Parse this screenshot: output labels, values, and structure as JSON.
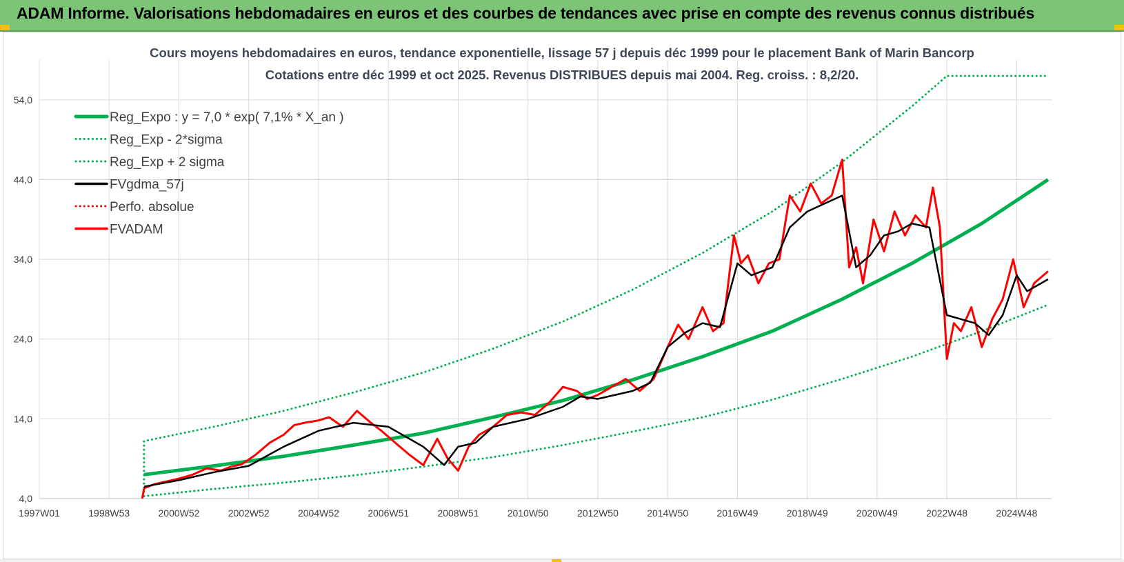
{
  "header": {
    "title": "ADAM Informe. Valorisations hebdomadaires en euros et des courbes de tendances avec prise en compte des revenus connus distribués"
  },
  "colors": {
    "header_bg": "#7cc576",
    "trend": "#00b050",
    "smooth": "#000000",
    "price": "#ff0000",
    "grid": "#d9d9d9"
  },
  "chart_data": {
    "type": "line",
    "title": "Cours moyens hebdomadaires en euros, tendance exponentielle, lissage 57 j depuis déc 1999 pour le placement Bank of Marin Bancorp",
    "subtitle": "Cotations entre déc 1999 et oct 2025.  Revenus DISTRIBUES depuis mai 2004. Reg. croiss. : 8,2/20.",
    "xlabel": "",
    "ylabel": "",
    "xlim": [
      1997.0,
      2026.0
    ],
    "ylim": [
      4.0,
      59.0
    ],
    "y_ticks": [
      4.0,
      14.0,
      24.0,
      34.0,
      44.0,
      54.0
    ],
    "y_tick_labels": [
      "4,0",
      "14,0",
      "24,0",
      "34,0",
      "44,0",
      "54,0"
    ],
    "x_ticks": [
      {
        "x": 1997.0,
        "label": "1997W01"
      },
      {
        "x": 1999.0,
        "label": "1998W53"
      },
      {
        "x": 2001.0,
        "label": "2000W52"
      },
      {
        "x": 2003.0,
        "label": "2002W52"
      },
      {
        "x": 2005.0,
        "label": "2004W52"
      },
      {
        "x": 2007.0,
        "label": "2006W51"
      },
      {
        "x": 2009.0,
        "label": "2008W51"
      },
      {
        "x": 2011.0,
        "label": "2010W50"
      },
      {
        "x": 2013.0,
        "label": "2012W50"
      },
      {
        "x": 2015.0,
        "label": "2014W50"
      },
      {
        "x": 2017.0,
        "label": "2016W49"
      },
      {
        "x": 2019.0,
        "label": "2018W49"
      },
      {
        "x": 2021.0,
        "label": "2020W49"
      },
      {
        "x": 2023.0,
        "label": "2022W48"
      },
      {
        "x": 2025.0,
        "label": "2024W48"
      }
    ],
    "grid": true,
    "legend_position": "top-left",
    "series": [
      {
        "name": "Reg_Expo : y = 7,0 * exp( 7,1% *  X_an )",
        "color": "#00b050",
        "style": "solid",
        "width": 5,
        "x": [
          2000.0,
          2002.0,
          2004.0,
          2006.0,
          2008.0,
          2010.0,
          2012.0,
          2014.0,
          2016.0,
          2018.0,
          2020.0,
          2022.0,
          2024.0,
          2025.9
        ],
        "y": [
          7.0,
          8.1,
          9.3,
          10.7,
          12.2,
          14.2,
          16.3,
          18.9,
          21.8,
          25.0,
          29.0,
          33.5,
          38.5,
          44.0
        ]
      },
      {
        "name": "Reg_Exp - 2*sigma",
        "color": "#00b050",
        "style": "dotted",
        "width": 3,
        "x": [
          2000.0,
          2002.0,
          2004.0,
          2006.0,
          2008.0,
          2010.0,
          2012.0,
          2014.0,
          2016.0,
          2018.0,
          2020.0,
          2022.0,
          2024.0,
          2025.9
        ],
        "y": [
          4.3,
          5.2,
          6.0,
          6.9,
          8.0,
          9.2,
          10.7,
          12.4,
          14.2,
          16.4,
          19.0,
          21.8,
          25.0,
          28.3
        ]
      },
      {
        "name": "Reg_Exp + 2 sigma",
        "color": "#00b050",
        "style": "dotted",
        "width": 3,
        "x": [
          2000.0,
          2000.0,
          2002.0,
          2004.0,
          2006.0,
          2008.0,
          2010.0,
          2012.0,
          2014.0,
          2016.0,
          2018.0,
          2020.0,
          2022.0,
          2023.0,
          2025.9
        ],
        "y": [
          4.3,
          11.2,
          13.0,
          15.0,
          17.3,
          19.8,
          22.8,
          26.2,
          30.2,
          34.8,
          40.0,
          46.2,
          53.2,
          57.0,
          57.0
        ]
      },
      {
        "name": "FVgdma_57j",
        "color": "#000000",
        "style": "solid",
        "width": 2.5,
        "x": [
          2000.0,
          2001.0,
          2002.0,
          2003.0,
          2004.0,
          2005.0,
          2006.0,
          2007.0,
          2008.0,
          2008.6,
          2009.0,
          2009.5,
          2010.0,
          2011.0,
          2012.0,
          2012.5,
          2013.0,
          2014.0,
          2014.5,
          2015.0,
          2015.5,
          2016.0,
          2016.5,
          2017.0,
          2017.4,
          2018.0,
          2018.5,
          2019.0,
          2019.5,
          2020.0,
          2020.4,
          2020.8,
          2021.2,
          2021.6,
          2022.0,
          2022.5,
          2023.0,
          2023.4,
          2023.8,
          2024.2,
          2024.6,
          2025.0,
          2025.3,
          2025.9
        ],
        "y": [
          5.5,
          6.3,
          7.3,
          8.1,
          10.5,
          12.5,
          13.5,
          13.0,
          10.5,
          8.2,
          10.5,
          11.0,
          13.0,
          14.0,
          15.5,
          16.8,
          16.5,
          17.5,
          18.5,
          23.0,
          24.8,
          26.0,
          25.5,
          33.5,
          32.0,
          33.0,
          38.0,
          40.0,
          41.0,
          42.0,
          33.0,
          34.5,
          37.0,
          37.5,
          38.5,
          38.0,
          27.0,
          26.5,
          26.0,
          24.5,
          27.0,
          32.0,
          30.0,
          31.5
        ]
      },
      {
        "name": "Perfo. absolue",
        "color": "#ff0000",
        "style": "dotted",
        "width": 2,
        "x": [],
        "y": []
      },
      {
        "name": "FVADAM",
        "color": "#ff0000",
        "style": "solid",
        "width": 3,
        "x": [
          1999.95,
          2000.0,
          2000.3,
          2000.6,
          2001.0,
          2001.4,
          2001.8,
          2002.2,
          2002.5,
          2002.8,
          2003.2,
          2003.6,
          2004.0,
          2004.3,
          2004.6,
          2005.0,
          2005.3,
          2005.7,
          2006.1,
          2006.5,
          2006.8,
          2007.2,
          2007.6,
          2008.0,
          2008.4,
          2008.7,
          2009.0,
          2009.3,
          2009.6,
          2010.0,
          2010.4,
          2010.8,
          2011.2,
          2011.6,
          2012.0,
          2012.4,
          2012.7,
          2013.0,
          2013.4,
          2013.8,
          2014.2,
          2014.6,
          2015.0,
          2015.3,
          2015.6,
          2016.0,
          2016.3,
          2016.6,
          2016.9,
          2017.1,
          2017.3,
          2017.6,
          2017.9,
          2018.2,
          2018.5,
          2018.8,
          2019.1,
          2019.4,
          2019.7,
          2020.0,
          2020.2,
          2020.4,
          2020.6,
          2020.9,
          2021.2,
          2021.5,
          2021.8,
          2022.1,
          2022.4,
          2022.6,
          2022.8,
          2023.0,
          2023.2,
          2023.4,
          2023.7,
          2024.0,
          2024.3,
          2024.6,
          2024.9,
          2025.2,
          2025.5,
          2025.9
        ],
        "y": [
          4.0,
          5.3,
          5.8,
          6.1,
          6.5,
          7.0,
          7.8,
          7.5,
          8.0,
          8.3,
          9.5,
          11.0,
          12.0,
          13.2,
          13.5,
          13.8,
          14.2,
          13.0,
          15.0,
          13.5,
          12.5,
          11.0,
          9.5,
          8.2,
          11.5,
          9.0,
          7.5,
          10.5,
          12.0,
          13.0,
          14.5,
          14.8,
          14.5,
          16.0,
          18.0,
          17.5,
          16.5,
          17.0,
          18.0,
          19.0,
          17.5,
          19.0,
          23.0,
          25.8,
          24.0,
          28.0,
          25.0,
          26.0,
          37.0,
          33.5,
          34.5,
          31.0,
          33.5,
          34.0,
          42.0,
          40.0,
          43.5,
          41.0,
          42.0,
          46.5,
          33.0,
          35.5,
          31.0,
          39.0,
          35.0,
          40.0,
          37.0,
          39.5,
          38.0,
          43.0,
          38.0,
          21.5,
          26.0,
          25.0,
          28.0,
          23.0,
          26.5,
          29.0,
          34.0,
          28.0,
          31.0,
          32.5
        ]
      }
    ]
  }
}
